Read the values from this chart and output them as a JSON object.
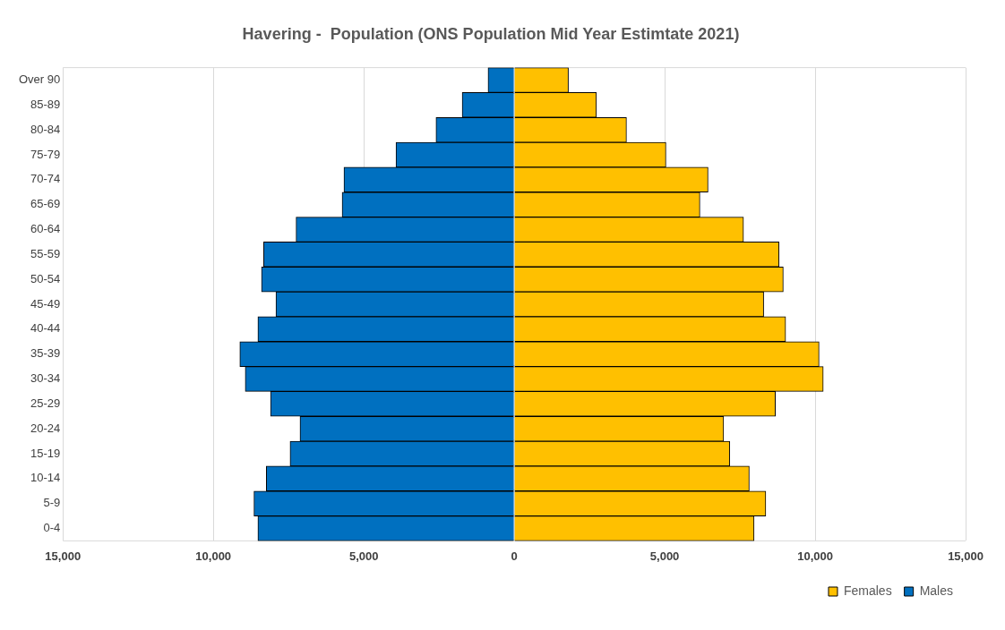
{
  "chart_data": {
    "type": "bar",
    "orientation": "horizontal",
    "stacked": true,
    "title": "Havering -  Population (ONS Population Mid Year Estimtate 2021)",
    "categories": [
      "Over 90",
      "85-89",
      "80-84",
      "75-79",
      "70-74",
      "65-69",
      "60-64",
      "55-59",
      "50-54",
      "45-49",
      "40-44",
      "35-39",
      "30-34",
      "25-29",
      "20-24",
      "15-19",
      "10-14",
      "5-9",
      "0-4"
    ],
    "series": [
      {
        "name": "Females",
        "color": "#ffc000",
        "values": [
          1800,
          2730,
          3730,
          5040,
          6440,
          6170,
          7620,
          8800,
          8940,
          8290,
          9020,
          10130,
          10270,
          8680,
          6960,
          7160,
          7810,
          8360,
          7970
        ]
      },
      {
        "name": "Males",
        "color": "#0070c0",
        "values": [
          -870,
          -1730,
          -2600,
          -3930,
          -5660,
          -5720,
          -7250,
          -8330,
          -8400,
          -7920,
          -8520,
          -9120,
          -8940,
          -8100,
          -7120,
          -7450,
          -8240,
          -8650,
          -8520
        ]
      }
    ],
    "xlim": [
      -15000,
      15000
    ],
    "xticks": [
      {
        "value": -15000,
        "label": "15,000"
      },
      {
        "value": -10000,
        "label": "10,000"
      },
      {
        "value": -5000,
        "label": "5,000"
      },
      {
        "value": 0,
        "label": "0"
      },
      {
        "value": 5000,
        "label": "5,000"
      },
      {
        "value": 10000,
        "label": "10,000"
      },
      {
        "value": 15000,
        "label": "15,000"
      }
    ],
    "grid": "x",
    "legend": "bottom right"
  }
}
